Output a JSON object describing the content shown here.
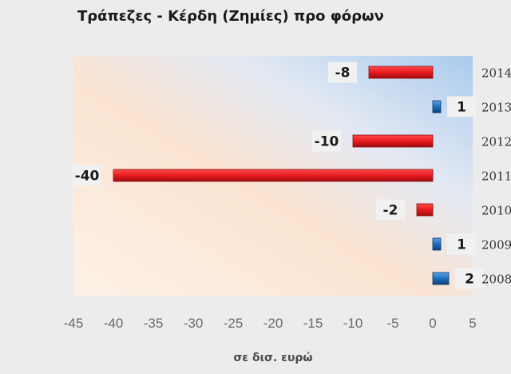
{
  "chart_data": {
    "type": "bar",
    "orientation": "horizontal",
    "title": "Τράπεζες - Κέρδη (Ζημίες) προ φόρων",
    "xlabel": "σε δισ. ευρώ",
    "ylabel": "",
    "categories": [
      "2014",
      "2013",
      "2012",
      "2011",
      "2010",
      "2009",
      "2008"
    ],
    "values": [
      -8,
      1,
      -10,
      -40,
      -2,
      1,
      2
    ],
    "xlim": [
      -45,
      5
    ],
    "xticks": [
      -45,
      -40,
      -35,
      -30,
      -25,
      -20,
      -15,
      -10,
      -5,
      0,
      5
    ],
    "grid": false,
    "legend": "none",
    "colors": {
      "negative": "#e0171b",
      "positive": "#1f6fc0"
    }
  }
}
